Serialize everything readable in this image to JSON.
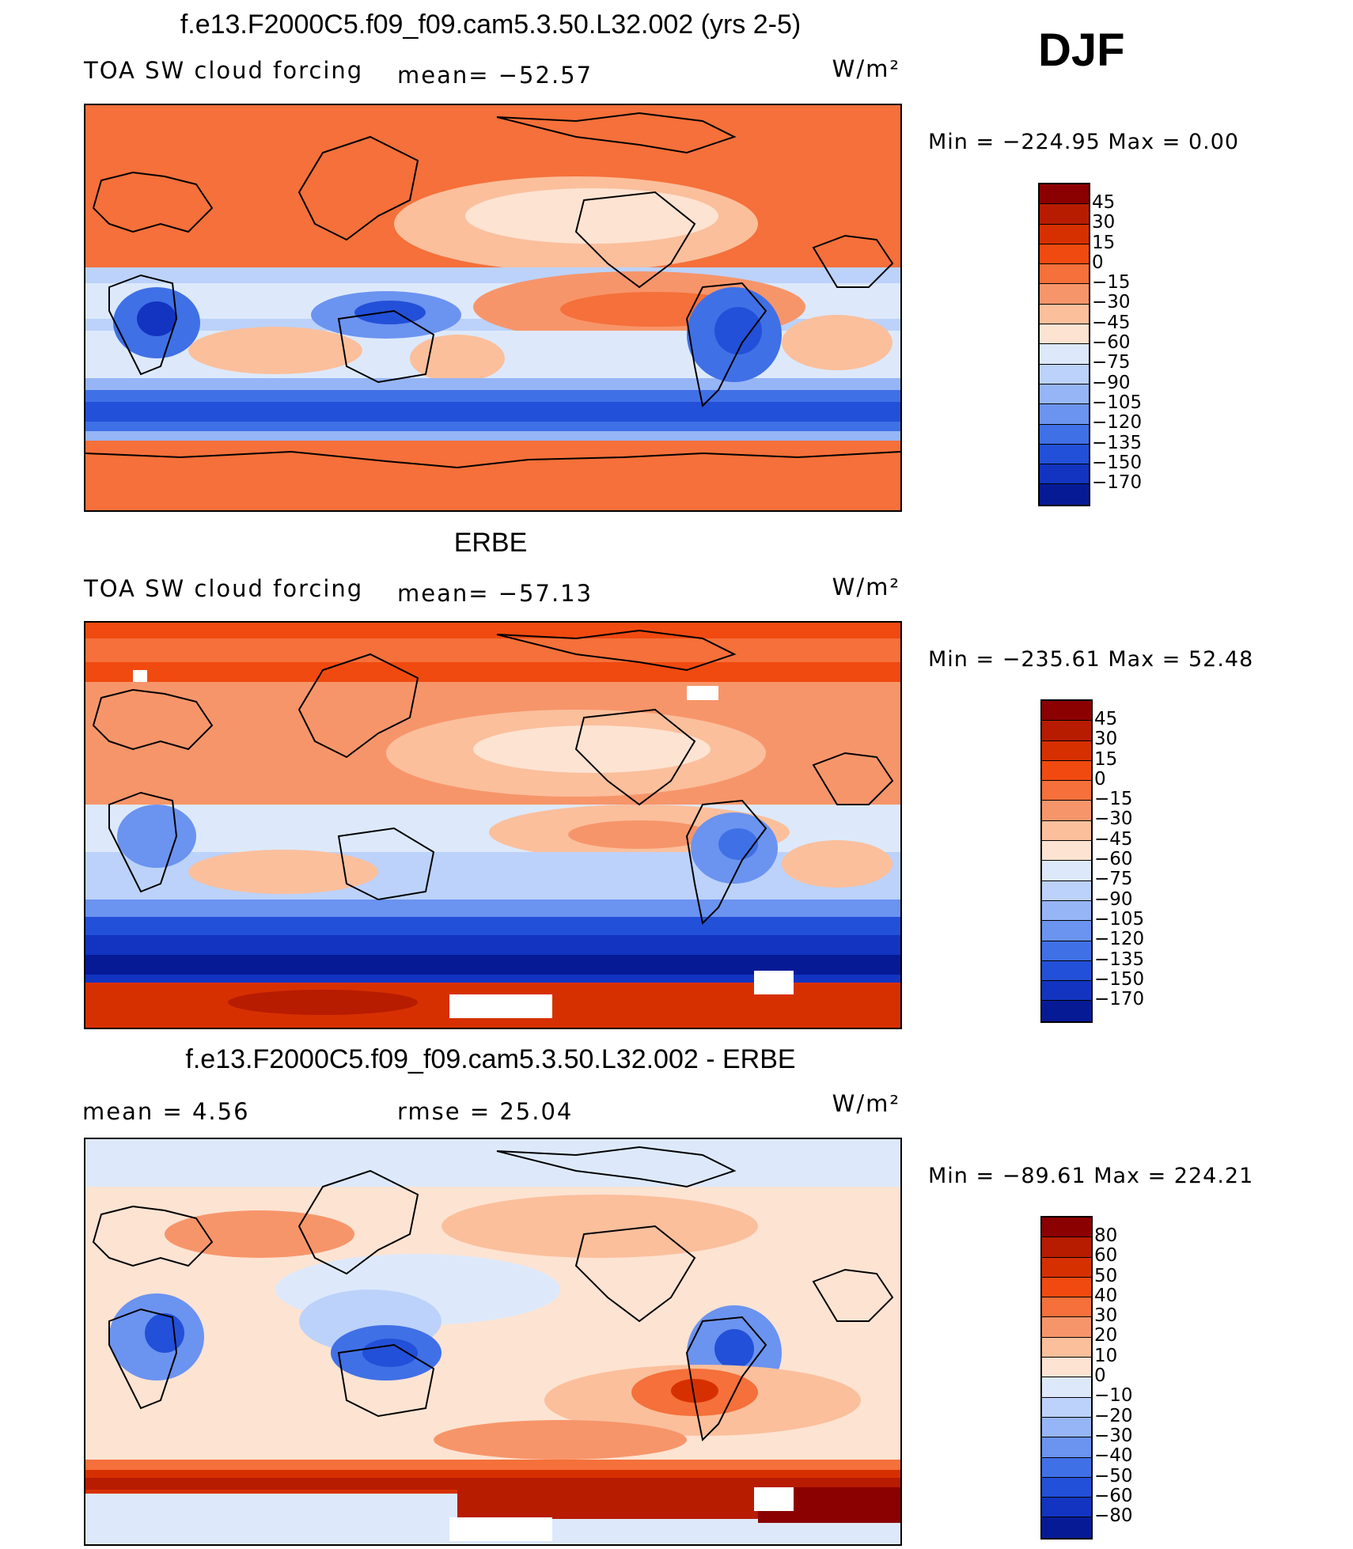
{
  "season": "DJF",
  "panels": [
    {
      "id": "model",
      "title": "f.e13.F2000C5.f09_f09.cam5.3.50.L32.002 (yrs 2-5)",
      "left_label": "TOA SW cloud forcing",
      "center_label": "mean=  −52.57",
      "units": "W/m²",
      "minmax": "Min  =  −224.95  Max  =    0.00",
      "colorbar": {
        "labels": [
          "45",
          "30",
          "15",
          "0",
          "−15",
          "−30",
          "−45",
          "−60",
          "−75",
          "−90",
          "−105",
          "−120",
          "−135",
          "−150",
          "−170"
        ],
        "colors": [
          "#8b0000",
          "#b71c00",
          "#d73000",
          "#f04a10",
          "#f5703a",
          "#f7956a",
          "#fbbf9c",
          "#fde3d2",
          "#dde9fb",
          "#bcd2fa",
          "#96b5f6",
          "#6b93f0",
          "#4070e6",
          "#2350d8",
          "#1234c0",
          "#061a96"
        ]
      }
    },
    {
      "id": "obs",
      "title": "ERBE",
      "left_label": "TOA SW cloud forcing",
      "center_label": "mean=  −57.13",
      "units": "W/m²",
      "minmax": "Min  =  −235.61  Max  =   52.48",
      "colorbar": {
        "labels": [
          "45",
          "30",
          "15",
          "0",
          "−15",
          "−30",
          "−45",
          "−60",
          "−75",
          "−90",
          "−105",
          "−120",
          "−135",
          "−150",
          "−170"
        ],
        "colors": [
          "#8b0000",
          "#b71c00",
          "#d73000",
          "#f04a10",
          "#f5703a",
          "#f7956a",
          "#fbbf9c",
          "#fde3d2",
          "#dde9fb",
          "#bcd2fa",
          "#96b5f6",
          "#6b93f0",
          "#4070e6",
          "#2350d8",
          "#1234c0",
          "#061a96"
        ]
      }
    },
    {
      "id": "diff",
      "title": "f.e13.F2000C5.f09_f09.cam5.3.50.L32.002 - ERBE",
      "left_label": "mean  =      4.56",
      "center_label": "rmse  =     25.04",
      "units": "W/m²",
      "minmax": "Min  =  −89.61  Max  =  224.21",
      "colorbar": {
        "labels": [
          "80",
          "60",
          "50",
          "40",
          "30",
          "20",
          "10",
          "0",
          "−10",
          "−20",
          "−30",
          "−40",
          "−50",
          "−60",
          "−80"
        ],
        "colors": [
          "#8b0000",
          "#b71c00",
          "#d73000",
          "#f04a10",
          "#f5703a",
          "#f7956a",
          "#fbbf9c",
          "#fde3d2",
          "#dde9fb",
          "#bcd2fa",
          "#96b5f6",
          "#6b93f0",
          "#4070e6",
          "#2350d8",
          "#1234c0",
          "#061a96"
        ]
      }
    }
  ]
}
